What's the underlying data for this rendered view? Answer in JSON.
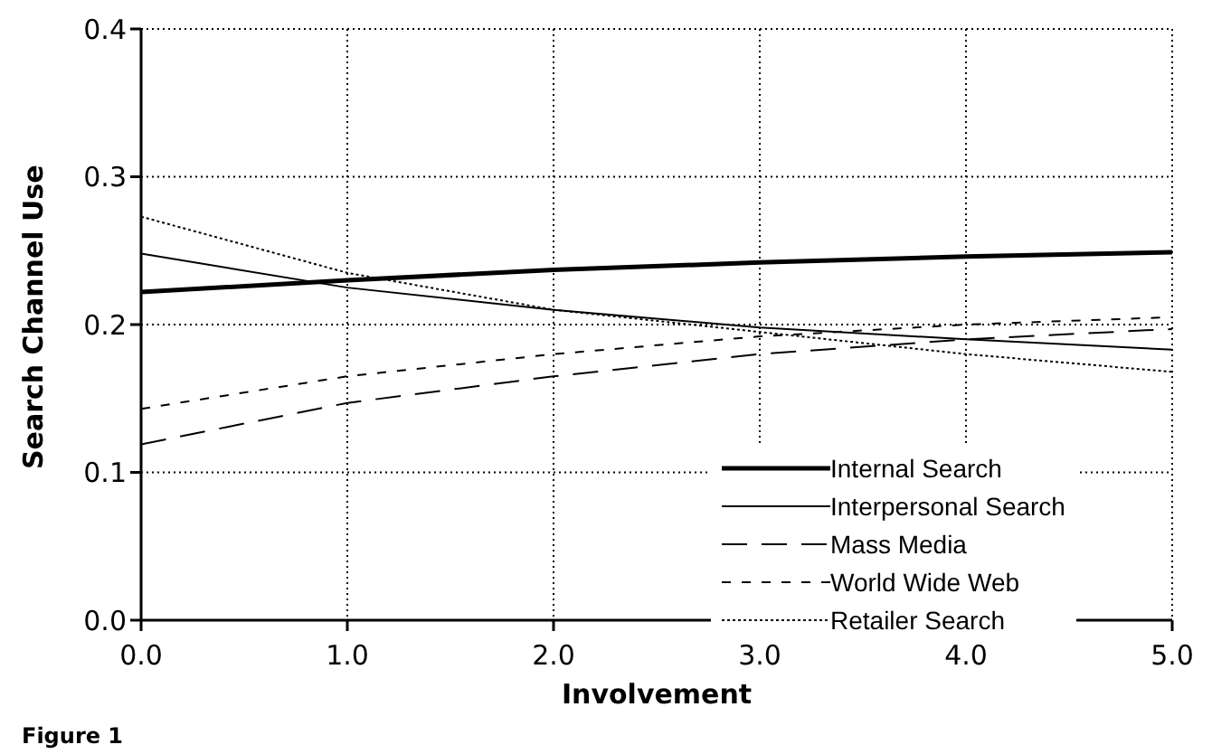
{
  "chart_data": {
    "type": "line",
    "xlabel": "Involvement",
    "ylabel": "Search Channel Use",
    "x": [
      0,
      1,
      2,
      3,
      4,
      5
    ],
    "series": [
      {
        "name": "Internal Search",
        "color": "#000000",
        "line_style": "solid",
        "values": [
          0.222,
          0.23,
          0.237,
          0.242,
          0.246,
          0.249
        ]
      },
      {
        "name": "Interpersonal Search",
        "color": "#000000",
        "line_style": "solid",
        "values": [
          0.248,
          0.225,
          0.21,
          0.198,
          0.19,
          0.183
        ]
      },
      {
        "name": "Mass Media",
        "color": "#000000",
        "line_style": "dashed",
        "values": [
          0.119,
          0.147,
          0.165,
          0.18,
          0.19,
          0.197
        ]
      },
      {
        "name": "World Wide Web",
        "color": "#000000",
        "line_style": "dashed",
        "values": [
          0.143,
          0.165,
          0.18,
          0.192,
          0.2,
          0.205
        ]
      },
      {
        "name": "Retailer Search",
        "color": "#000000",
        "line_style": "dotted",
        "values": [
          0.273,
          0.235,
          0.21,
          0.195,
          0.18,
          0.168
        ]
      }
    ],
    "xlim": [
      0,
      5
    ],
    "xticks": [
      {
        "value": 0,
        "label": "0.0"
      },
      {
        "value": 1,
        "label": "1.0"
      },
      {
        "value": 2,
        "label": "2.0"
      },
      {
        "value": 3,
        "label": "3.0"
      },
      {
        "value": 4,
        "label": "4.0"
      },
      {
        "value": 5,
        "label": "5.0"
      }
    ],
    "ylim": [
      0,
      0.4
    ],
    "yticks": [
      {
        "value": 0,
        "label": "0.0"
      },
      {
        "value": 0.1,
        "label": "0.1"
      },
      {
        "value": 0.2,
        "label": "0.2"
      },
      {
        "value": 0.3,
        "label": "0.3"
      },
      {
        "value": 0.4,
        "label": "0.4"
      }
    ],
    "grid": true,
    "legend": "bottom right",
    "marker": "none",
    "annotations": [
      "Figure 1"
    ]
  }
}
